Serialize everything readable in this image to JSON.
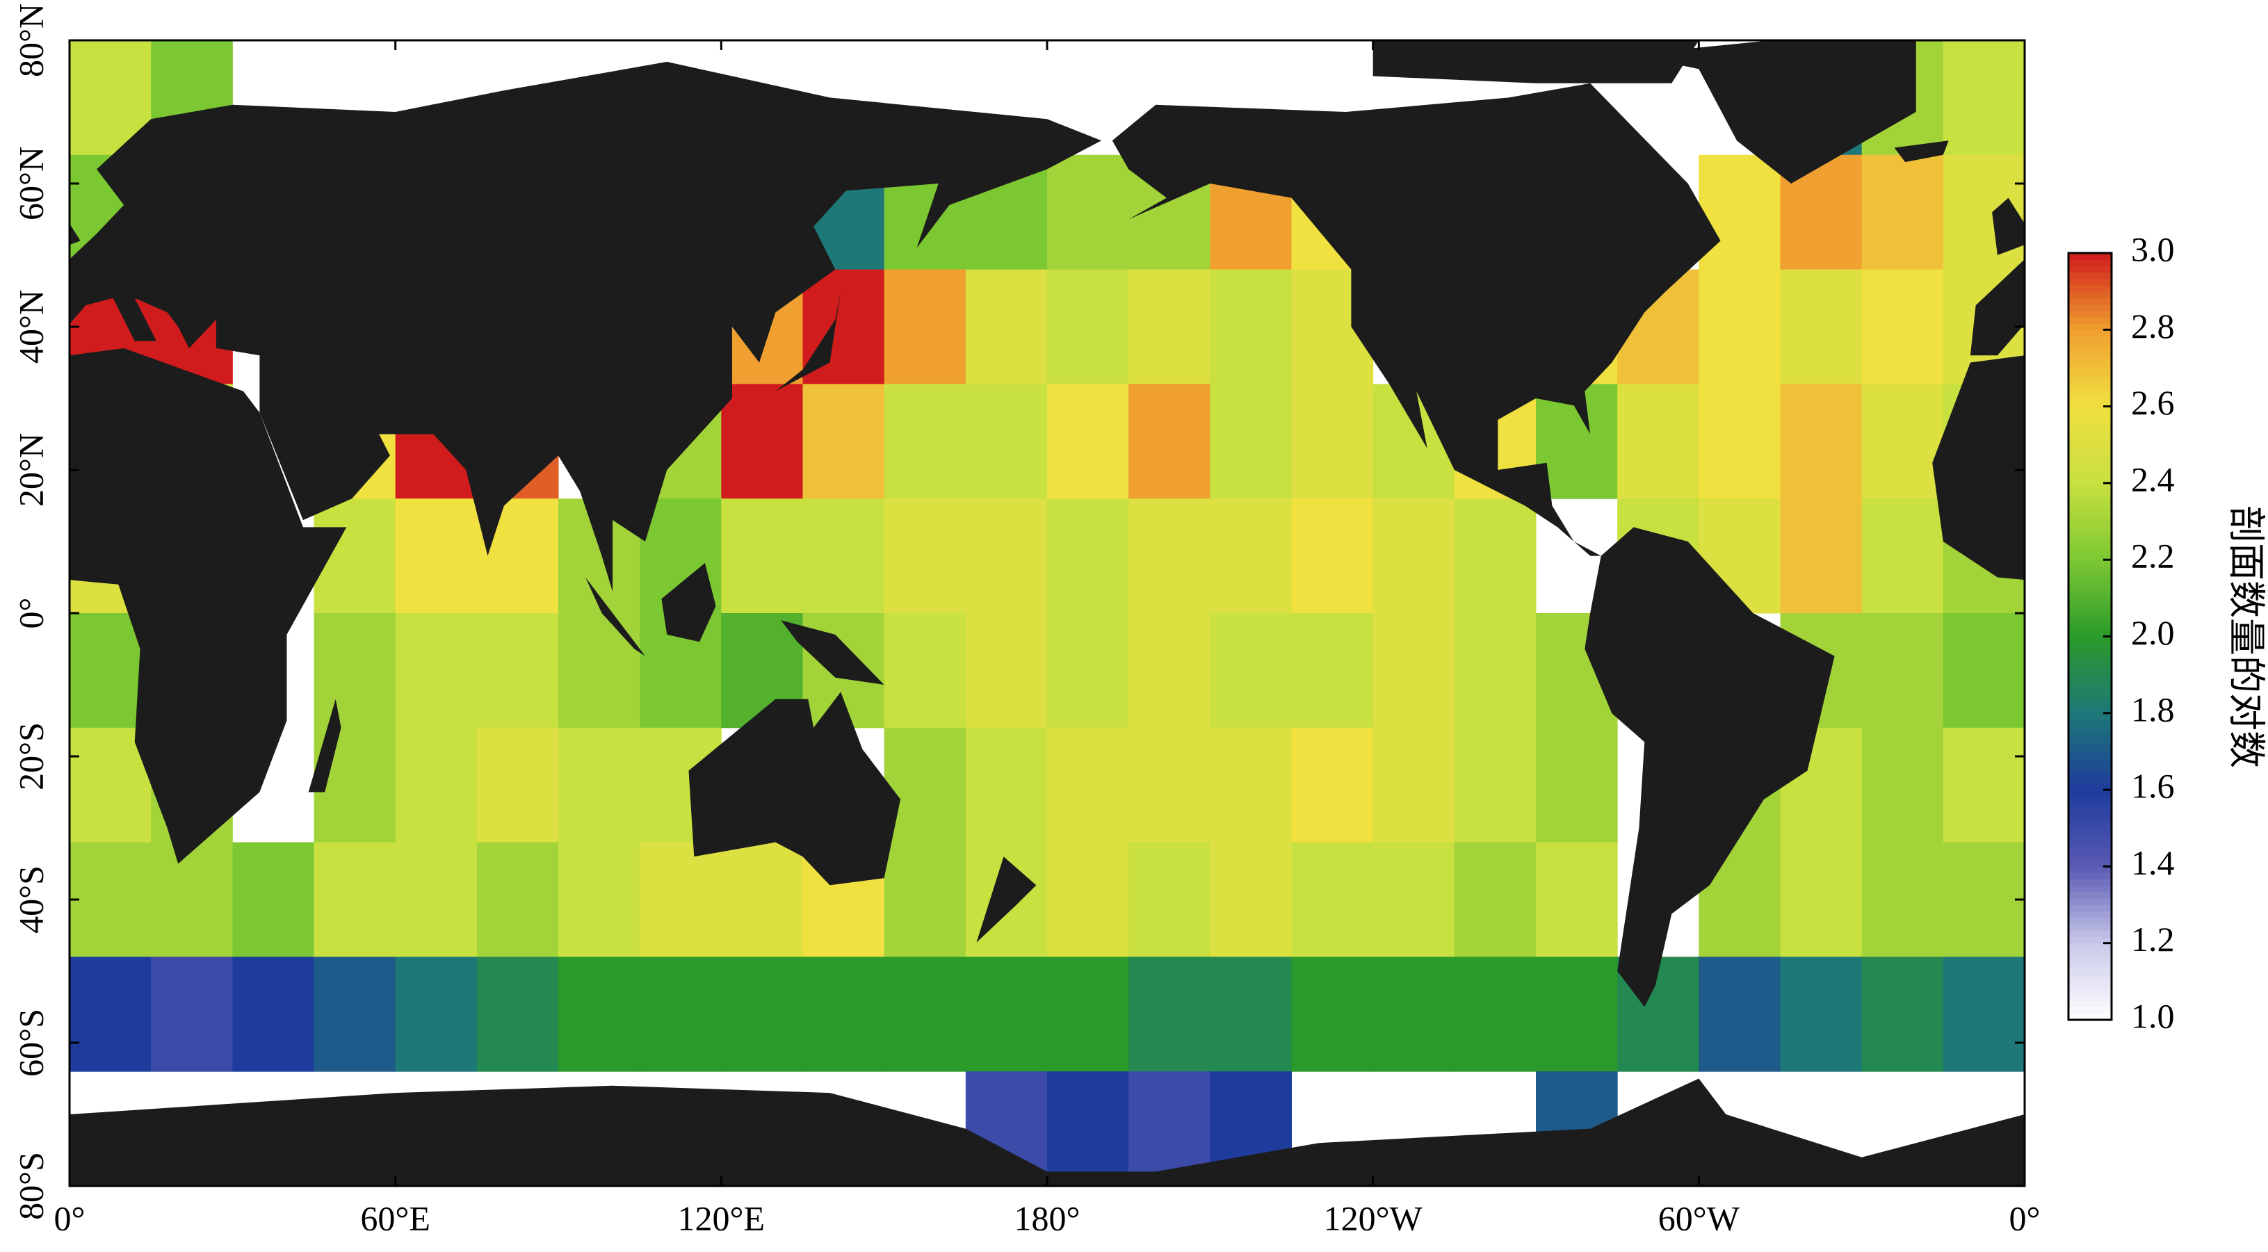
{
  "map": {
    "lon_ticks": [
      {
        "value": 0,
        "label": "0°"
      },
      {
        "value": 60,
        "label": "60°E"
      },
      {
        "value": 120,
        "label": "120°E"
      },
      {
        "value": 180,
        "label": "180°"
      },
      {
        "value": 240,
        "label": "120°W"
      },
      {
        "value": 300,
        "label": "60°W"
      },
      {
        "value": 360,
        "label": "0°"
      }
    ],
    "lat_ticks": [
      {
        "value": 80,
        "label": "80°N"
      },
      {
        "value": 60,
        "label": "60°N"
      },
      {
        "value": 40,
        "label": "40°N"
      },
      {
        "value": 20,
        "label": "20°N"
      },
      {
        "value": 0,
        "label": "0°"
      },
      {
        "value": -20,
        "label": "20°S"
      },
      {
        "value": -40,
        "label": "40°S"
      },
      {
        "value": -60,
        "label": "60°S"
      },
      {
        "value": -80,
        "label": "80°S"
      }
    ],
    "xlim": [
      0,
      360
    ],
    "ylim": [
      -80,
      80
    ],
    "land_color": "#1c1c1c",
    "grid": {
      "lon": [
        7.5,
        22.5,
        37.5,
        52.5,
        67.5,
        82.5,
        97.5,
        112.5,
        127.5,
        142.5,
        157.5,
        172.5,
        187.5,
        202.5,
        217.5,
        232.5,
        247.5,
        262.5,
        277.5,
        292.5,
        307.5,
        322.5,
        337.5,
        352.5
      ],
      "lat": [
        72,
        56,
        40,
        24,
        8,
        -8,
        -24,
        -40,
        -56,
        -72
      ],
      "values": [
        [
          2.4,
          2.2,
          null,
          null,
          null,
          null,
          null,
          null,
          null,
          null,
          null,
          null,
          null,
          null,
          null,
          null,
          null,
          null,
          null,
          null,
          null,
          1.8,
          2.3,
          2.4
        ],
        [
          2.2,
          2.4,
          null,
          null,
          null,
          null,
          null,
          null,
          null,
          1.8,
          2.2,
          2.2,
          2.3,
          2.3,
          2.8,
          2.6,
          null,
          null,
          null,
          null,
          2.6,
          2.8,
          2.7,
          2.5
        ],
        [
          3.0,
          3.0,
          null,
          null,
          null,
          null,
          null,
          null,
          2.8,
          3.0,
          2.8,
          2.5,
          2.4,
          2.5,
          2.4,
          2.5,
          null,
          null,
          2.6,
          2.7,
          2.6,
          2.5,
          2.6,
          2.5
        ],
        [
          null,
          2.4,
          null,
          2.6,
          3.0,
          2.9,
          null,
          2.3,
          3.0,
          2.7,
          2.4,
          2.4,
          2.6,
          2.8,
          2.4,
          2.5,
          2.4,
          2.6,
          2.2,
          2.5,
          2.6,
          2.7,
          2.5,
          2.4
        ],
        [
          2.5,
          null,
          null,
          2.4,
          2.6,
          2.6,
          2.3,
          2.2,
          2.4,
          2.4,
          2.5,
          2.5,
          2.4,
          2.5,
          2.5,
          2.6,
          2.5,
          2.4,
          null,
          2.4,
          2.5,
          2.7,
          2.4,
          2.3
        ],
        [
          2.2,
          null,
          null,
          2.3,
          2.4,
          2.4,
          2.3,
          2.2,
          2.1,
          2.3,
          2.4,
          2.5,
          2.4,
          2.5,
          2.4,
          2.4,
          2.5,
          2.4,
          2.3,
          null,
          null,
          2.3,
          2.3,
          2.2
        ],
        [
          2.4,
          2.3,
          null,
          2.3,
          2.4,
          2.5,
          2.4,
          2.4,
          null,
          null,
          2.3,
          2.4,
          2.5,
          2.5,
          2.5,
          2.6,
          2.5,
          2.4,
          2.3,
          null,
          2.3,
          2.4,
          2.3,
          2.4
        ],
        [
          2.3,
          2.3,
          2.2,
          2.4,
          2.4,
          2.3,
          2.4,
          2.5,
          2.5,
          2.6,
          2.3,
          2.4,
          2.5,
          2.4,
          2.5,
          2.4,
          2.4,
          2.3,
          2.4,
          null,
          2.3,
          2.4,
          2.3,
          2.3
        ],
        [
          1.6,
          1.5,
          1.6,
          1.7,
          1.8,
          1.9,
          2.0,
          2.0,
          2.0,
          2.0,
          2.0,
          2.0,
          2.0,
          1.9,
          1.9,
          2.0,
          2.0,
          2.0,
          2.0,
          1.9,
          1.7,
          1.8,
          1.9,
          1.8
        ],
        [
          null,
          null,
          null,
          null,
          null,
          null,
          null,
          null,
          null,
          null,
          null,
          1.5,
          1.6,
          1.5,
          1.6,
          null,
          null,
          null,
          1.7,
          null,
          null,
          null,
          null,
          null
        ]
      ]
    }
  },
  "colorbar": {
    "label": "剖面数量的对数",
    "clim": [
      1.0,
      3.0
    ],
    "colors": [
      "#ffffff",
      "#c9c9ea",
      "#5a5ab4",
      "#1e3c9c",
      "#1e7878",
      "#2a9a2a",
      "#7cc832",
      "#c8e040",
      "#f0e040",
      "#f0a030",
      "#d01c1c"
    ],
    "ticks": [
      {
        "value": 1.0,
        "label": "1.0"
      },
      {
        "value": 1.2,
        "label": "1.2"
      },
      {
        "value": 1.4,
        "label": "1.4"
      },
      {
        "value": 1.6,
        "label": "1.6"
      },
      {
        "value": 1.8,
        "label": "1.8"
      },
      {
        "value": 2.0,
        "label": "2.0"
      },
      {
        "value": 2.2,
        "label": "2.2"
      },
      {
        "value": 2.4,
        "label": "2.4"
      },
      {
        "value": 2.6,
        "label": "2.6"
      },
      {
        "value": 2.8,
        "label": "2.8"
      },
      {
        "value": 3.0,
        "label": "3.0"
      }
    ]
  }
}
